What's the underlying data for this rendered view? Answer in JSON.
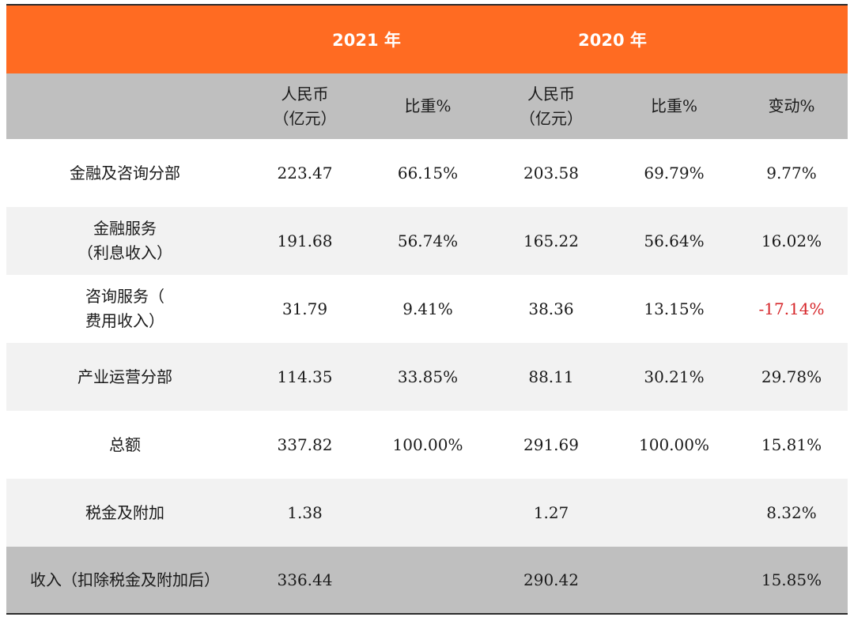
{
  "header": {
    "year_2021": "2021 年",
    "year_2020": "2020 年",
    "col_rmb_line1": "人民币",
    "col_rmb_line2": "（亿元）",
    "col_share": "比重%",
    "col_change": "变动%"
  },
  "rows": [
    {
      "label_lines": [
        "金融及咨询分部"
      ],
      "v2021": "223.47",
      "s2021": "66.15%",
      "v2020": "203.58",
      "s2020": "69.79%",
      "change": "9.77%",
      "negative": false
    },
    {
      "label_lines": [
        "金融服务",
        "（利息收入）"
      ],
      "v2021": "191.68",
      "s2021": "56.74%",
      "v2020": "165.22",
      "s2020": "56.64%",
      "change": "16.02%",
      "negative": false
    },
    {
      "label_lines": [
        "咨询服务（",
        "费用收入）"
      ],
      "v2021": "31.79",
      "s2021": "9.41%",
      "v2020": "38.36",
      "s2020": "13.15%",
      "change": "-17.14%",
      "negative": true
    },
    {
      "label_lines": [
        "产业运营分部"
      ],
      "v2021": "114.35",
      "s2021": "33.85%",
      "v2020": "88.11",
      "s2020": "30.21%",
      "change": "29.78%",
      "negative": false
    },
    {
      "label_lines": [
        "总额"
      ],
      "v2021": "337.82",
      "s2021": "100.00%",
      "v2020": "291.69",
      "s2020": "100.00%",
      "change": "15.81%",
      "negative": false
    },
    {
      "label_lines": [
        "税金及附加"
      ],
      "v2021": "1.38",
      "s2021": "",
      "v2020": "1.27",
      "s2020": "",
      "change": "8.32%",
      "negative": false
    },
    {
      "label_lines": [
        "收入（扣除税金及附加后）"
      ],
      "v2021": "336.44",
      "s2021": "",
      "v2020": "290.42",
      "s2020": "",
      "change": "15.85%",
      "negative": false
    }
  ],
  "colors": {
    "header_orange": "#ff6b22",
    "header_gray": "#bfbfbf",
    "row_light": "#f2f2f2",
    "negative_red": "#d6262a"
  }
}
